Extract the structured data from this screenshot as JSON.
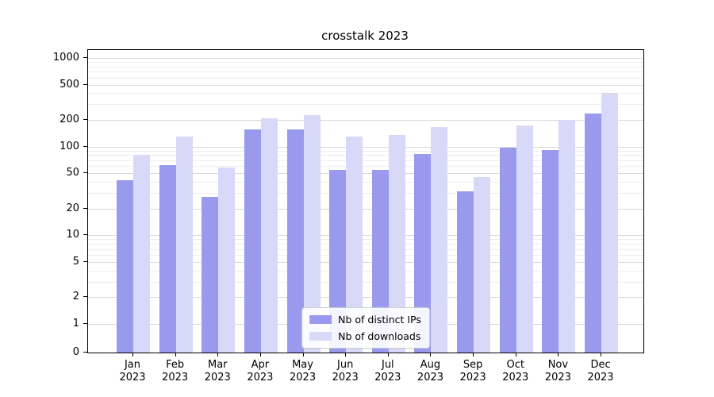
{
  "chart_data": {
    "type": "bar",
    "title": "crosstalk 2023",
    "yscale": "symlog",
    "ylim": [
      0,
      1000
    ],
    "grid": "horizontal",
    "legend_position": "lower center",
    "yticks": [
      0,
      1,
      2,
      5,
      10,
      20,
      50,
      100,
      200,
      500,
      1000
    ],
    "minor_gridlines": [
      3,
      4,
      6,
      7,
      8,
      9,
      30,
      40,
      60,
      70,
      80,
      90,
      300,
      400,
      600,
      700,
      800,
      900
    ],
    "categories": [
      "Jan 2023",
      "Feb 2023",
      "Mar 2023",
      "Apr 2023",
      "May 2023",
      "Jun 2023",
      "Jul 2023",
      "Aug 2023",
      "Sep 2023",
      "Oct 2023",
      "Nov 2023",
      "Dec 2023"
    ],
    "series": [
      {
        "name": "Nb of distinct IPs",
        "color": "#9999ee",
        "values": [
          42,
          62,
          27,
          155,
          155,
          54,
          55,
          82,
          31,
          97,
          92,
          235
        ]
      },
      {
        "name": "Nb of downloads",
        "color": "#d8d8f8",
        "values": [
          80,
          130,
          58,
          210,
          225,
          130,
          135,
          165,
          45,
          172,
          200,
          400
        ]
      }
    ]
  }
}
